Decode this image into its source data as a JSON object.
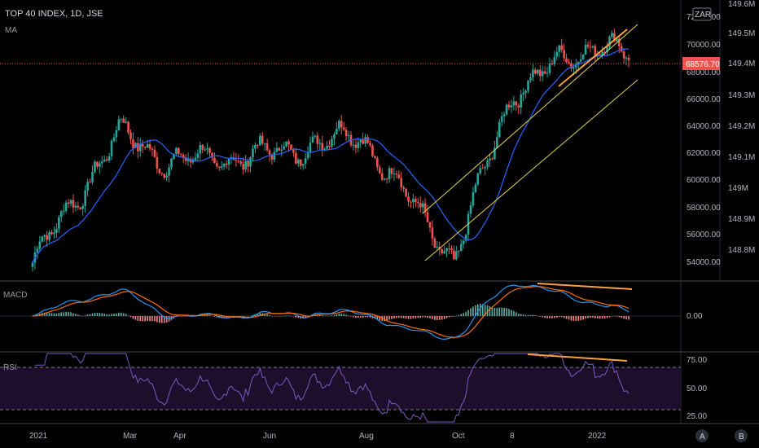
{
  "header": {
    "title": "TOP 40 INDEX, 1D, JSE",
    "indicator": "MA"
  },
  "currency_badge": "ZAR",
  "price_axis": {
    "labels": [
      "72000.00",
      "70000.00",
      "68000.00",
      "66000.00",
      "64000.00",
      "62000.00",
      "60000.00",
      "58000.00",
      "56000.00",
      "54000.00"
    ],
    "last_price_label": "68576.70"
  },
  "volume_axis": {
    "labels": [
      "149.6M",
      "149.5M",
      "149.4M",
      "149.3M",
      "149.2M",
      "149.1M",
      "149M",
      "148.9M",
      "148.8M"
    ]
  },
  "macd_pane": {
    "label": "MACD",
    "axis_labels": [
      "0.00"
    ]
  },
  "rsi_pane": {
    "label": "RSI",
    "axis_labels": [
      "75.00",
      "50.00",
      "25.00"
    ]
  },
  "time_axis": {
    "labels": [
      "2021",
      "Mar",
      "Apr",
      "Jun",
      "Aug",
      "Oct",
      "8",
      "2022"
    ]
  },
  "buttons": {
    "auto": "A",
    "log": "B"
  },
  "colors": {
    "up": "#26a69a",
    "down": "#ef5350",
    "ma": "#2962ff",
    "macd": "#2196f3",
    "signal": "#ff6d00",
    "rsi": "#7e57c2",
    "annotation": "#f7a23b",
    "channel": "#e5d54b"
  },
  "chart_data": {
    "type": "candlestick",
    "title": "TOP 40 INDEX, 1D, JSE",
    "series": [
      {
        "name": "price",
        "type": "candlestick",
        "x": [
          "2021-01-04",
          "2021-03-01",
          "2021-04-01",
          "2021-06-01",
          "2021-08-02",
          "2021-10-01",
          "2021-11-08",
          "2022-01-03",
          "2022-01-21"
        ],
        "values": [
          54500,
          63600,
          61500,
          62000,
          63400,
          54700,
          66500,
          70000,
          68576.7
        ]
      },
      {
        "name": "MA",
        "type": "line"
      }
    ],
    "ylim": [
      53500,
      72500
    ],
    "last_price": 68576.7,
    "panes": [
      {
        "name": "MACD",
        "series": [
          "macd",
          "signal",
          "histogram"
        ],
        "zero_line": 0
      },
      {
        "name": "RSI",
        "levels": [
          70,
          30
        ],
        "ylim": [
          20,
          80
        ]
      }
    ]
  }
}
